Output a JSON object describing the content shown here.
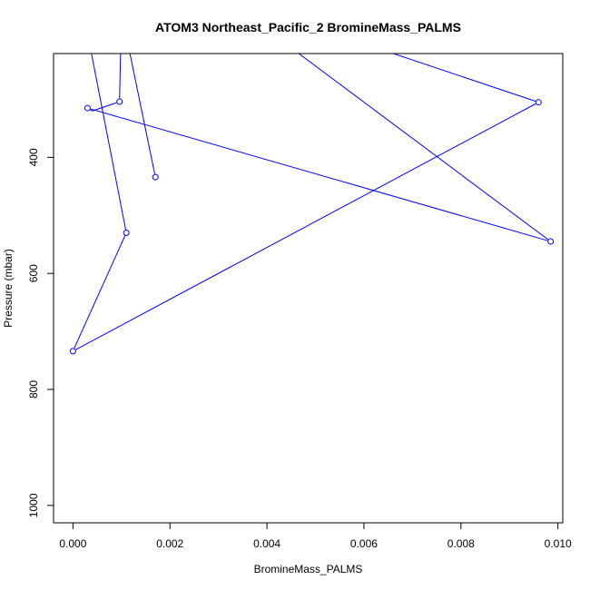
{
  "chart_data": {
    "type": "line",
    "title": "ATOM3 Northeast_Pacific_2 BromineMass_PALMS",
    "xlabel": "BromineMass_PALMS",
    "ylabel": "Pressure (mbar)",
    "xlim": [
      -0.0004,
      0.0101
    ],
    "ylim": [
      1030,
      221
    ],
    "y_reversed": true,
    "x_ticks": [
      {
        "value": 0.0,
        "label": "0.000"
      },
      {
        "value": 0.002,
        "label": "0.002"
      },
      {
        "value": 0.004,
        "label": "0.004"
      },
      {
        "value": 0.006,
        "label": "0.006"
      },
      {
        "value": 0.008,
        "label": "0.008"
      },
      {
        "value": 0.01,
        "label": "0.010"
      }
    ],
    "y_ticks": [
      {
        "value": 400,
        "label": "400"
      },
      {
        "value": 600,
        "label": "600"
      },
      {
        "value": 800,
        "label": "800"
      },
      {
        "value": 1000,
        "label": "1000"
      }
    ],
    "series": [
      {
        "color": "#0000ff",
        "marker": "open-circle",
        "points": [
          {
            "x": 0.0017,
            "y": 434,
            "marker": true
          },
          {
            "x": 0.001,
            "y": 150,
            "marker": false
          },
          {
            "x": 0.00096,
            "y": 304,
            "marker": true
          },
          {
            "x": 0.0004,
            "y": 320,
            "marker": false
          },
          {
            "x": 0.0003,
            "y": 315,
            "marker": true
          },
          {
            "x": 0.00985,
            "y": 545,
            "marker": true
          },
          {
            "x": 0.004,
            "y": 180,
            "marker": false
          }
        ]
      },
      {
        "color": "#0000ff",
        "marker": "open-circle",
        "points": [
          {
            "x": 0.0001,
            "y": 100,
            "marker": false
          },
          {
            "x": 0.0011,
            "y": 530,
            "marker": true
          },
          {
            "x": 0.0,
            "y": 734,
            "marker": true
          },
          {
            "x": 0.0096,
            "y": 305,
            "marker": true
          },
          {
            "x": 0.0055,
            "y": 190,
            "marker": false
          }
        ]
      }
    ],
    "grid": false,
    "legend": "none"
  }
}
